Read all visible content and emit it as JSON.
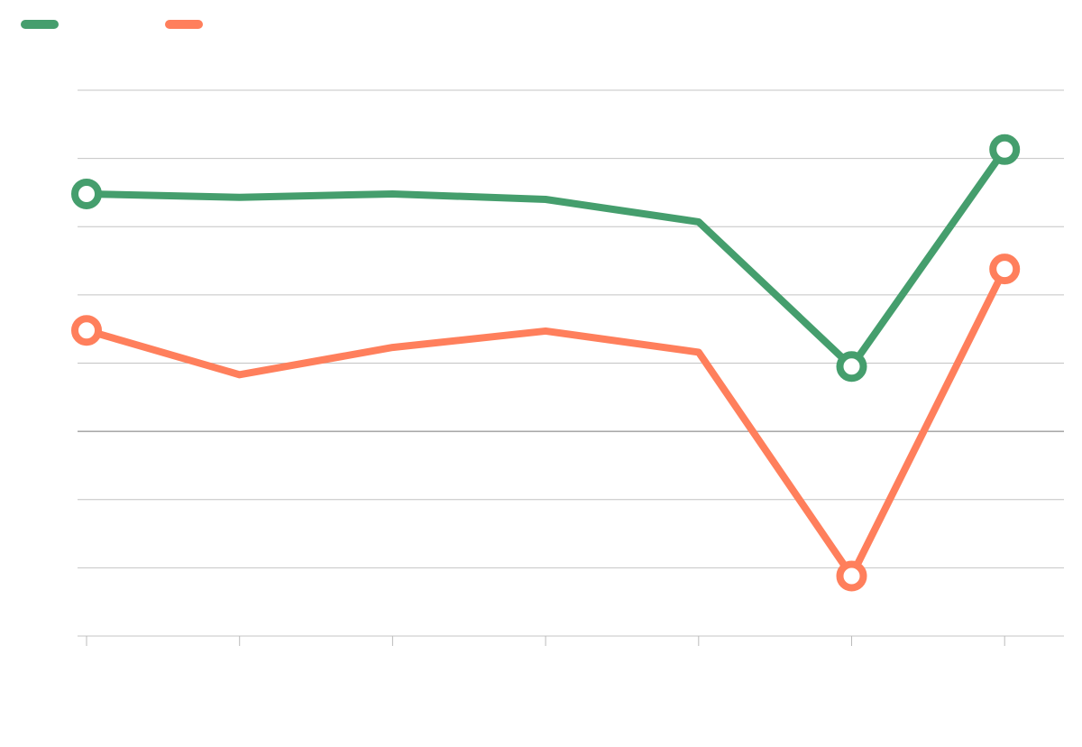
{
  "chart_data": {
    "type": "line",
    "title": "",
    "xlabel": "",
    "ylabel": "",
    "categories": [
      "",
      "",
      "",
      "",
      "",
      "",
      ""
    ],
    "ylim": [
      -3,
      5
    ],
    "y_gridlines": [
      -3,
      -2,
      -1,
      0,
      1,
      2,
      3,
      4,
      5
    ],
    "grid": true,
    "legend": "top-left",
    "series": [
      {
        "color": "#459e6d",
        "values": [
          3.48,
          3.43,
          3.48,
          3.4,
          3.07,
          0.95,
          4.13
        ],
        "markers_at": [
          0,
          5,
          6
        ]
      },
      {
        "color": "#ff7f5c",
        "values": [
          1.48,
          0.83,
          1.23,
          1.47,
          1.16,
          -2.12,
          2.38
        ],
        "markers_at": [
          0,
          5,
          6
        ]
      }
    ]
  }
}
